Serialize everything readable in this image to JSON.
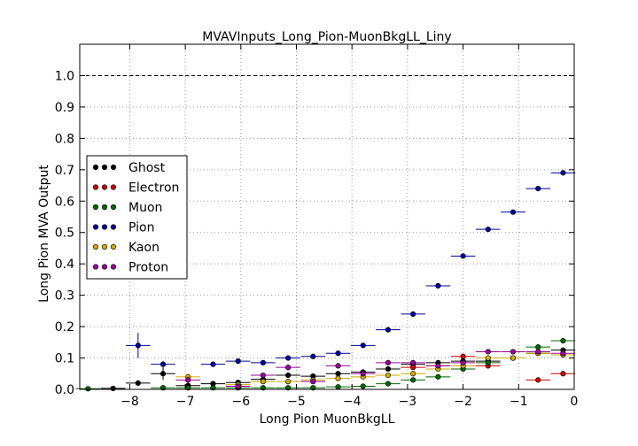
{
  "chart_data": {
    "type": "scatter",
    "title": "MVAVInputs_Long_Pion-MuonBkgLL_Liny",
    "xlabel": "Long Pion MuonBkgLL",
    "ylabel": "Long Pion MVA Output",
    "xlim": [
      -8.9,
      0
    ],
    "ylim": [
      0,
      1.1
    ],
    "xticks": [
      -8,
      -7,
      -6,
      -5,
      -4,
      -3,
      -2,
      -1,
      0
    ],
    "yticks": [
      0.0,
      0.1,
      0.2,
      0.3,
      0.4,
      0.5,
      0.6,
      0.7,
      0.8,
      0.9,
      1.0
    ],
    "xtick_labels": [
      "−8",
      "−7",
      "−6",
      "−5",
      "−4",
      "−3",
      "−2",
      "−1",
      "0"
    ],
    "ytick_labels": [
      "0.0",
      "0.1",
      "0.2",
      "0.3",
      "0.4",
      "0.5",
      "0.6",
      "0.7",
      "0.8",
      "0.9",
      "1.0"
    ],
    "grid": true,
    "reference_line": 1.0,
    "legend_placement": "center-left",
    "bin_half_width": 0.22,
    "colors": {
      "Ghost": "#000000",
      "Electron": "#cc0000",
      "Muon": "#006600",
      "Pion": "#000099",
      "Kaon": "#ccaa00",
      "Proton": "#990099"
    },
    "series": [
      {
        "name": "Ghost",
        "x": [
          -8.3,
          -7.85,
          -7.4,
          -6.95,
          -6.5,
          -6.05,
          -5.6,
          -5.15,
          -4.7,
          -4.25,
          -3.8,
          -3.35,
          -2.9,
          -2.45,
          -2.0,
          -1.55,
          -1.1,
          -0.65,
          -0.2
        ],
        "y": [
          0.003,
          0.02,
          0.05,
          0.012,
          0.018,
          0.022,
          0.032,
          0.045,
          0.042,
          0.05,
          0.055,
          0.065,
          0.08,
          0.085,
          0.09,
          0.09,
          0.1,
          0.115,
          0.125
        ],
        "yerr": [
          0.003,
          0.005,
          0.02,
          0.01,
          0.005,
          0.004,
          0.005,
          0.004,
          0.004,
          0.004,
          0.004,
          0.004,
          0.004,
          0.004,
          0.004,
          0.004,
          0.004,
          0.004,
          0.004
        ]
      },
      {
        "name": "Electron",
        "x": [
          -2.9,
          -2.45,
          -2.0,
          -1.55,
          -1.1,
          -0.65,
          -0.2
        ],
        "y": [
          0.07,
          0.075,
          0.105,
          0.075,
          0.1,
          0.03,
          0.05
        ],
        "yerr": [
          0.008,
          0.008,
          0.008,
          0.008,
          0.008,
          0.005,
          0.005
        ]
      },
      {
        "name": "Muon",
        "x": [
          -8.75,
          -7.4,
          -6.95,
          -6.5,
          -6.05,
          -5.6,
          -5.15,
          -4.7,
          -4.25,
          -3.8,
          -3.35,
          -2.9,
          -2.45,
          -2.0,
          -1.55,
          -1.1,
          -0.65,
          -0.2
        ],
        "y": [
          0.002,
          0.005,
          0.005,
          0.005,
          0.005,
          0.005,
          0.005,
          0.005,
          0.008,
          0.01,
          0.018,
          0.03,
          0.04,
          0.065,
          0.085,
          0.1,
          0.135,
          0.155
        ],
        "yerr": [
          0.001,
          0.002,
          0.002,
          0.002,
          0.002,
          0.002,
          0.002,
          0.002,
          0.002,
          0.002,
          0.003,
          0.003,
          0.003,
          0.003,
          0.003,
          0.003,
          0.003,
          0.003
        ]
      },
      {
        "name": "Pion",
        "x": [
          -7.85,
          -7.4,
          -6.5,
          -6.05,
          -5.6,
          -5.15,
          -4.7,
          -4.25,
          -3.8,
          -3.35,
          -2.9,
          -2.45,
          -2.0,
          -1.55,
          -1.1,
          -0.65,
          -0.2
        ],
        "y": [
          0.14,
          0.08,
          0.08,
          0.09,
          0.085,
          0.1,
          0.105,
          0.115,
          0.14,
          0.19,
          0.24,
          0.33,
          0.425,
          0.51,
          0.565,
          0.64,
          0.69
        ],
        "yerr": [
          0.04,
          0.01,
          0.003,
          0.003,
          0.003,
          0.003,
          0.003,
          0.003,
          0.003,
          0.003,
          0.003,
          0.003,
          0.003,
          0.003,
          0.003,
          0.003,
          0.003
        ]
      },
      {
        "name": "Kaon",
        "x": [
          -6.95,
          -6.05,
          -5.6,
          -5.15,
          -4.7,
          -4.25,
          -3.8,
          -3.35,
          -2.9,
          -2.45,
          -2.0,
          -1.55,
          -1.1,
          -0.65,
          -0.2
        ],
        "y": [
          0.04,
          0.015,
          0.025,
          0.025,
          0.03,
          0.035,
          0.04,
          0.045,
          0.05,
          0.065,
          0.075,
          0.1,
          0.1,
          0.115,
          0.11
        ],
        "yerr": [
          0.01,
          0.005,
          0.004,
          0.004,
          0.004,
          0.004,
          0.004,
          0.004,
          0.004,
          0.004,
          0.004,
          0.004,
          0.004,
          0.004,
          0.004
        ]
      },
      {
        "name": "Proton",
        "x": [
          -6.95,
          -6.05,
          -5.6,
          -5.15,
          -4.7,
          -4.25,
          -3.8,
          -3.35,
          -2.9,
          -2.45,
          -2.0,
          -1.55,
          -1.1,
          -0.65,
          -0.2
        ],
        "y": [
          0.03,
          0.01,
          0.045,
          0.07,
          0.025,
          0.075,
          0.05,
          0.085,
          0.085,
          0.075,
          0.085,
          0.12,
          0.12,
          0.12,
          0.115
        ],
        "yerr": [
          0.01,
          0.005,
          0.008,
          0.01,
          0.006,
          0.008,
          0.006,
          0.006,
          0.006,
          0.006,
          0.006,
          0.006,
          0.006,
          0.006,
          0.006
        ]
      }
    ]
  }
}
